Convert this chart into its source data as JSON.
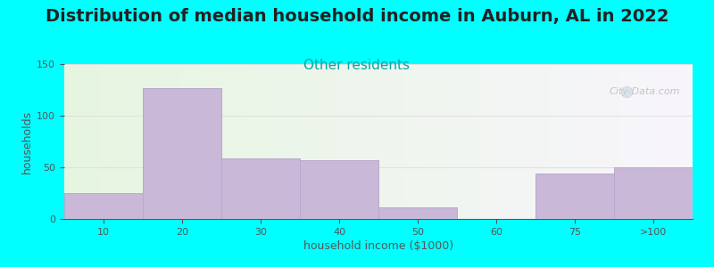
{
  "title": "Distribution of median household income in Auburn, AL in 2022",
  "subtitle": "Other residents",
  "xlabel": "household income ($1000)",
  "ylabel": "households",
  "background_color": "#00FFFF",
  "bar_color": "#c9b8d8",
  "bar_edge_color": "#b8a8cc",
  "categories": [
    "10",
    "20",
    "30",
    "40",
    "50",
    "60",
    "75",
    ">100"
  ],
  "values": [
    25,
    127,
    59,
    57,
    11,
    0,
    44,
    50
  ],
  "ylim": [
    0,
    150
  ],
  "yticks": [
    0,
    50,
    100,
    150
  ],
  "watermark": "City-Data.com",
  "title_fontsize": 14,
  "subtitle_fontsize": 11,
  "subtitle_color": "#00aaaa",
  "ylabel_fontsize": 9,
  "xlabel_fontsize": 9,
  "tick_fontsize": 8,
  "title_color": "#222222",
  "axis_color": "#555555",
  "grid_color": "#dddddd",
  "bg_left_color": "#e6f5e0",
  "bg_right_color": "#f8f5fc"
}
